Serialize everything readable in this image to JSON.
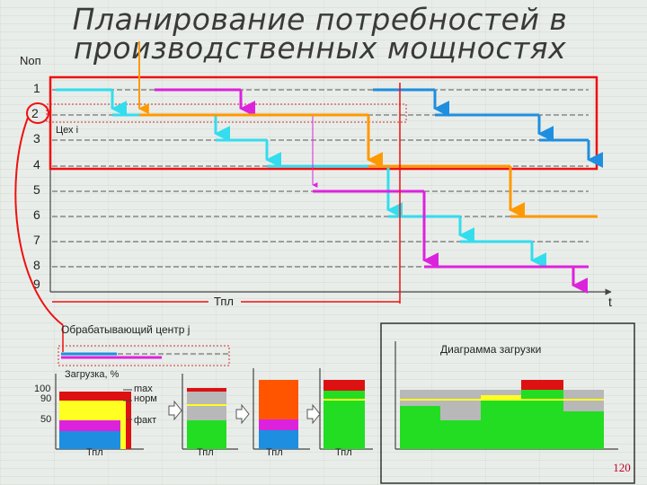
{
  "title": {
    "line1": "Планирование потребностей в",
    "line2": "производственных мощностях"
  },
  "n_op_label": "Nоп",
  "row_labels": [
    "1",
    "2",
    "3",
    "4",
    "5",
    "6",
    "7",
    "8",
    "9"
  ],
  "shop_label": "Цех i",
  "t_label": "t",
  "tpl_label": "Тпл",
  "work_center_label": "Обрабатывающий центр j",
  "load_diagram_label": "Диаграмма загрузки",
  "load_axis_label": "Загрузка, %",
  "ticks": [
    "100",
    "90",
    "50"
  ],
  "max_label": "max",
  "norm_label": "норм",
  "fact_label": "факт",
  "bottom_tpl": [
    "Тпл",
    "Тпл",
    "Тпл",
    "Тпл"
  ],
  "page_number": "120",
  "colors": {
    "cyan": "#33ddee",
    "magenta": "#dd22dd",
    "orange": "#ff9900",
    "blue": "#1e8ee0",
    "red": "#ee1111",
    "green": "#22dd22",
    "yellow": "#ffff22",
    "gray": "#b8b8b8"
  }
}
